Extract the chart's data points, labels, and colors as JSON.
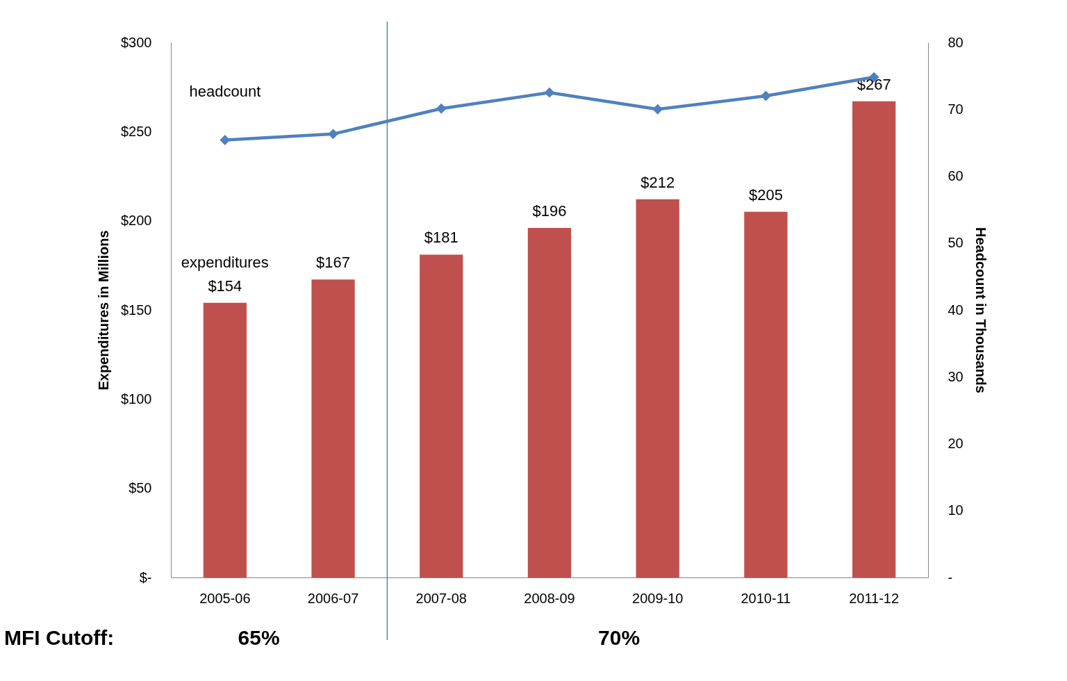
{
  "chart_data": {
    "type": "bar",
    "categories": [
      "2005-06",
      "2006-07",
      "2007-08",
      "2008-09",
      "2009-10",
      "2010-11",
      "2011-12"
    ],
    "series": [
      {
        "name": "expenditures",
        "color": "#c0504d",
        "values": [
          154,
          167,
          181,
          196,
          212,
          205,
          267
        ],
        "value_labels": [
          "$154",
          "$167",
          "$181",
          "$196",
          "$212",
          "$205",
          "$267"
        ]
      },
      {
        "name": "headcount",
        "type": "line",
        "axis": "y2",
        "color": "#4f81bd",
        "marker": "diamond",
        "values": [
          65.4,
          66.3,
          70.1,
          72.5,
          70.0,
          72.0,
          74.8
        ]
      }
    ],
    "ylabel": "Expenditures in Millions",
    "y2label": "Headcount in Thousands",
    "ylim": [
      0,
      300
    ],
    "yticks": [
      {
        "value": 0,
        "label": "$-"
      },
      {
        "value": 50,
        "label": "$50"
      },
      {
        "value": 100,
        "label": "$100"
      },
      {
        "value": 150,
        "label": "$150"
      },
      {
        "value": 200,
        "label": "$200"
      },
      {
        "value": 250,
        "label": "$250"
      },
      {
        "value": 300,
        "label": "$300"
      }
    ],
    "y2lim": [
      0,
      80
    ],
    "y2ticks": [
      {
        "value": 0,
        "label": "-"
      },
      10,
      20,
      30,
      40,
      50,
      60,
      70,
      80
    ],
    "ref_lines": [
      {
        "axis": "x",
        "value": "2007-08",
        "color": "#4f81bd"
      }
    ],
    "annotations": [
      "MFI Cutoff:",
      "65%",
      "70%"
    ],
    "grid": false
  }
}
